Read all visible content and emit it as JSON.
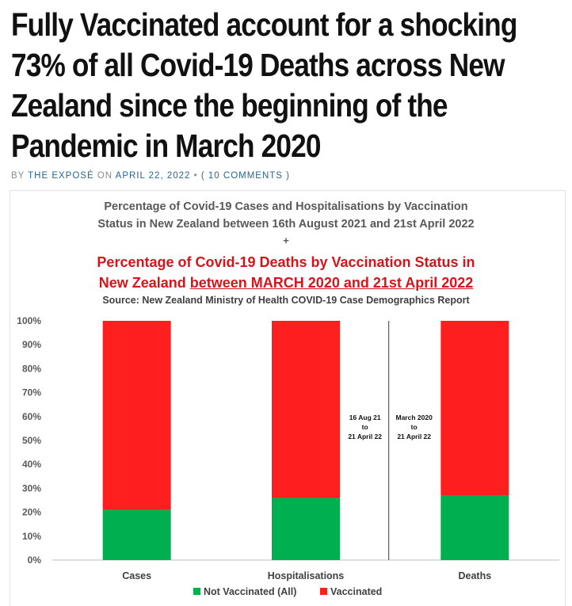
{
  "article": {
    "headline_lines": [
      "Fully Vaccinated account for a shocking",
      "73% of all Covid-19 Deaths across New",
      "Zealand since the beginning of the",
      "Pandemic in March 2020"
    ],
    "byline": {
      "by": "BY",
      "author": "THE EXPOSÉ",
      "on": "ON",
      "date": "APRIL 22, 2022",
      "sep": "•",
      "comments": "( 10 COMMENTS )"
    }
  },
  "chart_data": {
    "type": "bar",
    "stacked": true,
    "title_lines": [
      "Percentage of Covid-19 Cases and Hospitalisations by Vaccination",
      "Status in New Zealand between 16th August 2021 and 21st April 2022"
    ],
    "plus": "+",
    "subtitle_line1": "Percentage of Covid-19 Deaths by Vaccination Status in",
    "subtitle_line2_plain": "New Zealand ",
    "subtitle_line2_underlined": "between MARCH 2020 and 21st April 2022",
    "source": "Source: New Zealand Ministry of Health COVID-19 Case Demographics Report",
    "categories": [
      "Cases",
      "Hospitalisations",
      "Deaths"
    ],
    "series": [
      {
        "name": "Not Vaccinated (All)",
        "color": "#00b050",
        "values": [
          21,
          26,
          27
        ]
      },
      {
        "name": "Vaccinated",
        "color": "#ff1f1f",
        "values": [
          79,
          74,
          73
        ]
      }
    ],
    "ylim": [
      0,
      100
    ],
    "yticks": [
      "0%",
      "10%",
      "20%",
      "30%",
      "40%",
      "50%",
      "60%",
      "70%",
      "80%",
      "90%",
      "100%"
    ],
    "annotations": [
      {
        "lines": [
          "16 Aug 21",
          "to",
          "21 April 22"
        ]
      },
      {
        "lines": [
          "March 2020",
          "to",
          "21 April 22"
        ]
      }
    ],
    "legend_position": "bottom",
    "grid": false
  }
}
